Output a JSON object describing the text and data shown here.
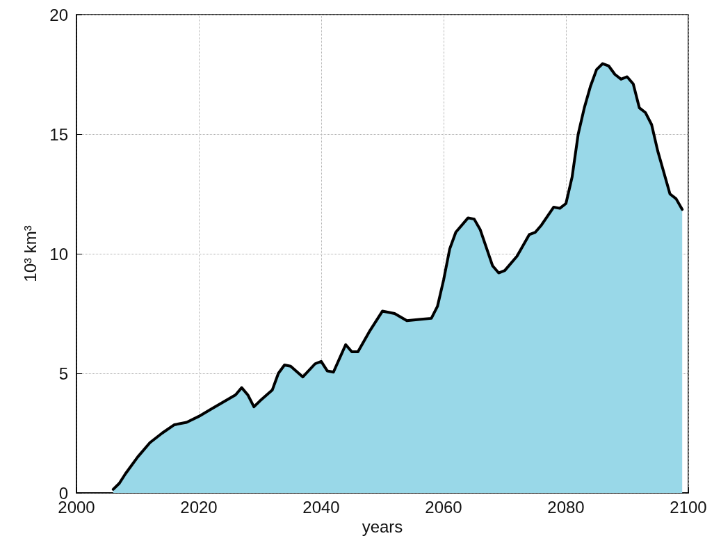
{
  "chart_data": {
    "type": "area",
    "xlabel": "years",
    "ylabel": "10³ km³",
    "x": [
      2006,
      2007,
      2008,
      2010,
      2012,
      2014,
      2016,
      2018,
      2020,
      2022,
      2024,
      2026,
      2027,
      2028,
      2029,
      2030,
      2032,
      2033,
      2034,
      2035,
      2037,
      2039,
      2040,
      2041,
      2042,
      2044,
      2045,
      2046,
      2048,
      2050,
      2052,
      2054,
      2056,
      2058,
      2059,
      2060,
      2061,
      2062,
      2064,
      2065,
      2066,
      2068,
      2069,
      2070,
      2072,
      2074,
      2075,
      2076,
      2078,
      2079,
      2080,
      2081,
      2082,
      2083,
      2084,
      2085,
      2086,
      2087,
      2088,
      2089,
      2090,
      2091,
      2092,
      2093,
      2094,
      2095,
      2096,
      2097,
      2098,
      2099
    ],
    "series": [
      {
        "color": "#99d8e8",
        "values": [
          0.15,
          0.4,
          0.8,
          1.5,
          2.1,
          2.5,
          2.85,
          2.95,
          3.2,
          3.5,
          3.8,
          4.1,
          4.4,
          4.1,
          3.6,
          3.85,
          4.3,
          5.0,
          5.35,
          5.3,
          4.85,
          5.4,
          5.5,
          5.1,
          5.05,
          6.2,
          5.9,
          5.9,
          6.8,
          7.6,
          7.5,
          7.2,
          7.25,
          7.3,
          7.8,
          8.9,
          10.2,
          10.9,
          11.5,
          11.45,
          11.0,
          9.5,
          9.2,
          9.3,
          9.9,
          10.8,
          10.9,
          11.2,
          11.95,
          11.9,
          12.1,
          13.2,
          15.0,
          16.1,
          17.0,
          17.7,
          17.95,
          17.85,
          17.5,
          17.3,
          17.4,
          17.1,
          16.1,
          15.9,
          15.4,
          14.3,
          13.4,
          12.5,
          12.3,
          11.85
        ]
      }
    ],
    "xlim": [
      2000,
      2100
    ],
    "xticks": [
      2000,
      2020,
      2040,
      2060,
      2080,
      2100
    ],
    "ylim": [
      0,
      20
    ],
    "yticks": [
      0,
      5,
      10,
      15,
      20
    ],
    "grid": true,
    "marker": "none",
    "line_style": "solid"
  }
}
